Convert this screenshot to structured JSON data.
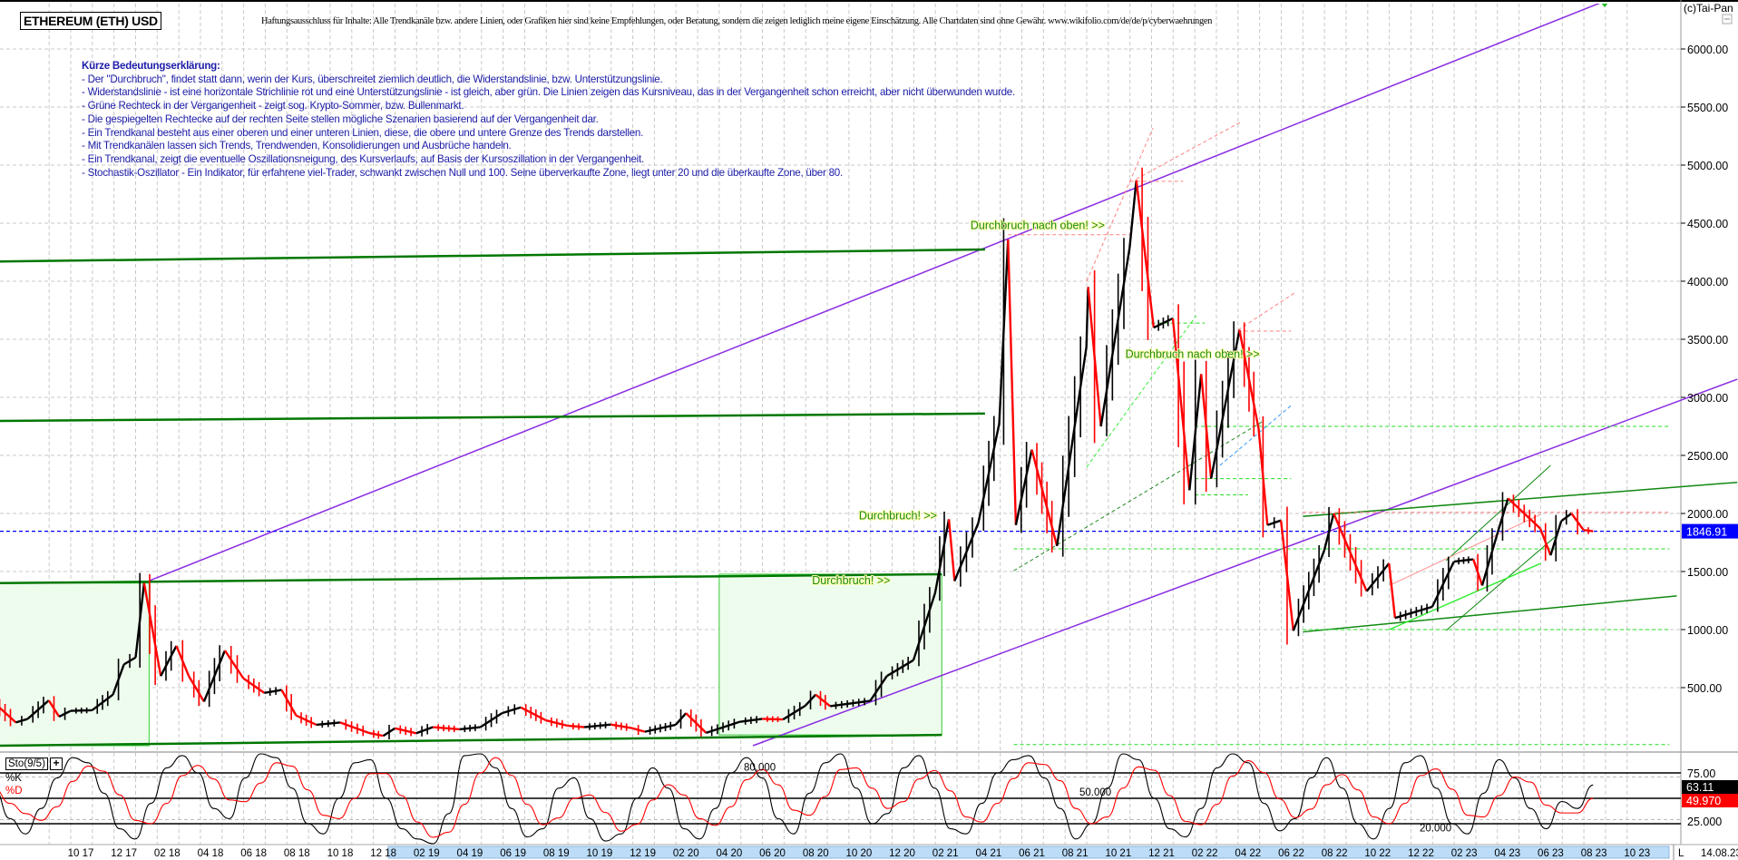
{
  "header": {
    "title": "ETHEREUM (ETH) USD",
    "disclaimer": "Haftungsausschluss für Inhalte: Alle Trendkanäle bzw. andere Linien, oder Grafiken hier sind keine Empfehlungen, oder Beratung, sondern die zeigen lediglich meine eigene Einschätzung. Alle Chartdaten sind ohne Gewähr.  www.wikifolio.com/de/de/p/cyberwaehrungen",
    "copyright": "(c)Tai-Pan"
  },
  "legend": {
    "heading": "Kürze Bedeutungserklärung:",
    "lines": [
      "- Der \"Durchbruch\", findet statt dann, wenn der Kurs, überschreitet ziemlich deutlich, die Widerstandslinie, bzw. Unterstützungslinie.",
      "- Widerstandslinie - ist eine horizontale Strichlinie rot und eine Unterstützungslinie - ist gleich, aber grün. Die Linien zeigen das Kursniveau, das in der Vergangenheit schon erreicht, aber nicht überwunden wurde.",
      "- Grüne Rechteck in der Vergangenheit - zeigt sog. Krypto-Sommer, bzw. Bullenmarkt.",
      "- Die gespiegelten Rechtecke auf der rechten Seite stellen mögliche Szenarien basierend auf der Vergangenheit dar.",
      "- Ein Trendkanal besteht aus einer oberen und einer unteren Linien, diese, die obere und untere Grenze des Trends darstellen.",
      "- Mit Trendkanälen lassen sich Trends, Trendwenden, Konsolidierungen und Ausbrüche handeln.",
      "- Ein Trendkanal, zeigt die eventuelle Oszillationsneigung, des Kursverlaufs, auf Basis der Kursoszillation in der Vergangenheit.",
      "- Stochastik-Oszillator - Ein Indikator, für erfahrene viel-Trader, schwankt zwischen Null und 100. Seine überverkaufte Zone, liegt unter 20 und die überkaufte Zone, über 80."
    ]
  },
  "chart_data": {
    "type": "line",
    "title": "ETHEREUM (ETH) USD",
    "ylim": [
      0,
      6400
    ],
    "y_scale": "linear",
    "y_ticks": [
      "500.00",
      "1000.00",
      "1500.00",
      "2000.00",
      "2500.00",
      "3000.00",
      "3500.00",
      "4000.00",
      "4500.00",
      "5000.00",
      "5500.00",
      "6000.00"
    ],
    "grid": true,
    "x_ticks": [
      "10 17",
      "12 17",
      "02 18",
      "04 18",
      "06 18",
      "08 18",
      "10 18",
      "12 18",
      "02 19",
      "04 19",
      "06 19",
      "08 19",
      "10 19",
      "12 19",
      "02 20",
      "04 20",
      "06 20",
      "08 20",
      "10 20",
      "12 20",
      "02 21",
      "04 21",
      "06 21",
      "08 21",
      "10 21",
      "12 21",
      "02 22",
      "04 22",
      "06 22",
      "08 22",
      "10 22",
      "12 22",
      "02 23",
      "04 23",
      "06 23",
      "08 23",
      "10 23"
    ],
    "x_end_label": "14.08.23",
    "x_scale_label": "L",
    "current_price": "1846.91",
    "colors": {
      "up": "#000000",
      "down": "#ff0000",
      "trend_purple": "#8a2be2",
      "support": "#007700",
      "support_dashed": "#22dd22",
      "resistance_dashed": "#ff8080",
      "current": "#0000ff"
    },
    "series": [
      {
        "values": [
          [
            "2017-06-15",
            370
          ],
          [
            "2017-07-15",
            200
          ],
          [
            "2017-08-01",
            230
          ],
          [
            "2017-08-31",
            390
          ],
          [
            "2017-09-15",
            250
          ],
          [
            "2017-10-01",
            300
          ],
          [
            "2017-10-31",
            305
          ],
          [
            "2017-11-30",
            440
          ],
          [
            "2017-12-15",
            700
          ],
          [
            "2018-01-01",
            760
          ],
          [
            "2018-01-13",
            1400
          ],
          [
            "2018-02-06",
            600
          ],
          [
            "2018-02-28",
            860
          ],
          [
            "2018-03-15",
            600
          ],
          [
            "2018-04-06",
            380
          ],
          [
            "2018-05-05",
            820
          ],
          [
            "2018-05-31",
            580
          ],
          [
            "2018-06-30",
            455
          ],
          [
            "2018-07-24",
            480
          ],
          [
            "2018-08-14",
            260
          ],
          [
            "2018-09-12",
            180
          ],
          [
            "2018-10-15",
            200
          ],
          [
            "2018-11-25",
            110
          ],
          [
            "2018-12-15",
            85
          ],
          [
            "2019-01-01",
            150
          ],
          [
            "2019-01-31",
            107
          ],
          [
            "2019-02-24",
            160
          ],
          [
            "2019-03-31",
            141
          ],
          [
            "2019-04-30",
            160
          ],
          [
            "2019-05-30",
            280
          ],
          [
            "2019-06-26",
            330
          ],
          [
            "2019-07-31",
            218
          ],
          [
            "2019-08-31",
            172
          ],
          [
            "2019-09-24",
            160
          ],
          [
            "2019-10-31",
            182
          ],
          [
            "2019-11-30",
            152
          ],
          [
            "2019-12-18",
            120
          ],
          [
            "2020-01-31",
            180
          ],
          [
            "2020-02-15",
            280
          ],
          [
            "2020-03-13",
            110
          ],
          [
            "2020-04-30",
            206
          ],
          [
            "2020-05-31",
            231
          ],
          [
            "2020-06-30",
            226
          ],
          [
            "2020-07-31",
            345
          ],
          [
            "2020-08-15",
            440
          ],
          [
            "2020-09-05",
            340
          ],
          [
            "2020-10-31",
            386
          ],
          [
            "2020-11-24",
            600
          ],
          [
            "2020-12-31",
            737
          ],
          [
            "2021-01-31",
            1314
          ],
          [
            "2021-02-20",
            1950
          ],
          [
            "2021-02-28",
            1418
          ],
          [
            "2021-03-31",
            1918
          ],
          [
            "2021-04-30",
            2773
          ],
          [
            "2021-05-12",
            4360
          ],
          [
            "2021-05-23",
            1900
          ],
          [
            "2021-06-15",
            2550
          ],
          [
            "2021-07-20",
            1720
          ],
          [
            "2021-08-31",
            3433
          ],
          [
            "2021-09-03",
            3950
          ],
          [
            "2021-09-21",
            2750
          ],
          [
            "2021-10-31",
            4288
          ],
          [
            "2021-11-10",
            4870
          ],
          [
            "2021-12-04",
            3600
          ],
          [
            "2021-12-31",
            3680
          ],
          [
            "2022-01-24",
            2200
          ],
          [
            "2022-02-10",
            3200
          ],
          [
            "2022-02-24",
            2300
          ],
          [
            "2022-04-03",
            3580
          ],
          [
            "2022-04-30",
            2730
          ],
          [
            "2022-05-12",
            1900
          ],
          [
            "2022-05-31",
            1940
          ],
          [
            "2022-06-18",
            990
          ],
          [
            "2022-07-31",
            1680
          ],
          [
            "2022-08-14",
            2000
          ],
          [
            "2022-09-30",
            1330
          ],
          [
            "2022-10-31",
            1570
          ],
          [
            "2022-11-09",
            1100
          ],
          [
            "2022-12-31",
            1196
          ],
          [
            "2023-01-31",
            1585
          ],
          [
            "2023-02-28",
            1605
          ],
          [
            "2023-03-10",
            1380
          ],
          [
            "2023-03-31",
            1820
          ],
          [
            "2023-04-16",
            2130
          ],
          [
            "2023-05-31",
            1870
          ],
          [
            "2023-06-15",
            1640
          ],
          [
            "2023-06-30",
            1934
          ],
          [
            "2023-07-14",
            2000
          ],
          [
            "2023-07-31",
            1857
          ],
          [
            "2023-08-14",
            1847
          ]
        ]
      }
    ],
    "zones": [
      {
        "from": "2017-06-22",
        "to": "2018-01-20",
        "low": 0,
        "high": 1400,
        "color": "#eefcee",
        "border": "#33cc33"
      },
      {
        "from": "2020-04-01",
        "to": "2021-02-10",
        "low": 93,
        "high": 1477,
        "color": "#eefcee",
        "border": "#33cc33"
      }
    ],
    "lines": [
      {
        "from": [
          "2018-01-20",
          1420
        ],
        "to": [
          "2023-09-03",
          6420
        ],
        "color": "#8a2be2",
        "dash": false,
        "width": 1.5
      },
      {
        "from": [
          "2020-05-18",
          0
        ],
        "to": [
          "2024-03-04",
          3156
        ],
        "color": "#8a2be2",
        "dash": false,
        "width": 1.5
      },
      {
        "from": [
          "2017-06-22",
          4170
        ],
        "to": [
          "2021-04-10",
          4273
        ],
        "color": "#007700",
        "dash": false,
        "width": 2.5
      },
      {
        "from": [
          "2017-06-22",
          2797
        ],
        "to": [
          "2021-04-10",
          2860
        ],
        "color": "#007700",
        "dash": false,
        "width": 2.5
      },
      {
        "from": [
          "2017-06-22",
          1400
        ],
        "to": [
          "2021-02-10",
          1477
        ],
        "color": "#007700",
        "dash": false,
        "width": 2.5
      },
      {
        "from": [
          "2017-06-22",
          0
        ],
        "to": [
          "2021-02-10",
          93
        ],
        "color": "#007700",
        "dash": false,
        "width": 2.5
      },
      {
        "from": [
          "2022-07-01",
          1975
        ],
        "to": [
          "2024-03-04",
          2268
        ],
        "color": "#118811",
        "dash": false,
        "width": 1.5
      },
      {
        "from": [
          "2022-07-01",
          980
        ],
        "to": [
          "2023-12-10",
          1290
        ],
        "color": "#118811",
        "dash": false,
        "width": 1.5
      },
      {
        "from": [
          "2023-01-20",
          1594
        ],
        "to": [
          "2023-06-15",
          2414
        ],
        "color": "#118811",
        "dash": false,
        "width": 1
      },
      {
        "from": [
          "2023-01-20",
          992
        ],
        "to": [
          "2023-06-24",
          1813
        ],
        "color": "#118811",
        "dash": false,
        "width": 1
      },
      {
        "from": [
          "2022-11-01",
          1000
        ],
        "to": [
          "2023-06-01",
          1570
        ],
        "color": "#33ee33",
        "dash": false,
        "width": 1.5
      },
      {
        "from": [
          "2022-11-01",
          1380
        ],
        "to": [
          "2023-06-01",
          1992
        ],
        "color": "#ff9090",
        "dash": false,
        "width": 1
      },
      {
        "from": [
          "2022-07-01",
          2010
        ],
        "to": [
          "2023-11-30",
          2010
        ],
        "color": "#ff8080",
        "dash": true,
        "width": 1
      },
      {
        "from": [
          "2021-05-20",
          1695
        ],
        "to": [
          "2023-11-30",
          1695
        ],
        "color": "#22dd22",
        "dash": true,
        "width": 1
      },
      {
        "from": [
          "2022-07-01",
          1000
        ],
        "to": [
          "2023-11-30",
          1000
        ],
        "color": "#22dd22",
        "dash": true,
        "width": 1
      },
      {
        "from": [
          "2021-05-20",
          10
        ],
        "to": [
          "2023-11-30",
          10
        ],
        "color": "#22dd22",
        "dash": true,
        "width": 1
      },
      {
        "from": [
          "2022-02-01",
          2750
        ],
        "to": [
          "2023-11-30",
          2750
        ],
        "color": "#22dd22",
        "dash": true,
        "width": 1
      },
      {
        "from": [
          "2021-12-01",
          3640
        ],
        "to": [
          "2022-02-15",
          3640
        ],
        "color": "#22dd22",
        "dash": true,
        "width": 1
      },
      {
        "from": [
          "2022-02-01",
          2300
        ],
        "to": [
          "2022-06-15",
          2300
        ],
        "color": "#22dd22",
        "dash": true,
        "width": 1
      },
      {
        "from": [
          "2022-02-01",
          2160
        ],
        "to": [
          "2022-04-15",
          2160
        ],
        "color": "#22dd22",
        "dash": true,
        "width": 1
      },
      {
        "from": [
          "2021-11-01",
          4860
        ],
        "to": [
          "2022-01-15",
          4860
        ],
        "color": "#ff8080",
        "dash": true,
        "width": 1
      },
      {
        "from": [
          "2021-05-12",
          4400
        ],
        "to": [
          "2021-11-01",
          4400
        ],
        "color": "#ff8080",
        "dash": true,
        "width": 1
      },
      {
        "from": [
          "2022-04-01",
          3570
        ],
        "to": [
          "2022-06-15",
          3570
        ],
        "color": "#ff8080",
        "dash": true,
        "width": 1
      },
      {
        "from": [
          "2021-09-01",
          4000
        ],
        "to": [
          "2021-12-03",
          5320
        ],
        "color": "#ff8080",
        "dash": true,
        "width": 1
      },
      {
        "from": [
          "2021-11-10",
          4880
        ],
        "to": [
          "2022-04-06",
          5375
        ],
        "color": "#ff8080",
        "dash": true,
        "width": 1
      },
      {
        "from": [
          "2022-04-01",
          3580
        ],
        "to": [
          "2022-06-20",
          3900
        ],
        "color": "#ff8080",
        "dash": true,
        "width": 1
      },
      {
        "from": [
          "2021-05-20",
          1506
        ],
        "to": [
          "2022-05-06",
          2795
        ],
        "color": "#228822",
        "dash": true,
        "width": 1
      },
      {
        "from": [
          "2021-09-01",
          2400
        ],
        "to": [
          "2022-02-03",
          3703
        ],
        "color": "#33ee33",
        "dash": true,
        "width": 1
      },
      {
        "from": [
          "2022-03-06",
          2414
        ],
        "to": [
          "2022-06-15",
          2930
        ],
        "color": "#3399ff",
        "dash": true,
        "width": 1
      }
    ],
    "annotations": [
      {
        "text": "Durchbruch nach oben! >>",
        "date": "2021-03-20",
        "price": 4450
      },
      {
        "text": "Durchbruch nach oben! >>",
        "date": "2021-10-25",
        "price": 3340
      },
      {
        "text": "Durchbruch! >>",
        "date": "2020-10-15",
        "price": 1950
      },
      {
        "text": "Durchbruch! >>",
        "date": "2020-08-10",
        "price": 1390
      }
    ]
  },
  "stochastic": {
    "name": "Sto(9/5)",
    "k_label": "%K",
    "d_label": "%D",
    "levels": [
      "80.000",
      "50.000",
      "20.000"
    ],
    "axis_labels": [
      "75.00",
      "25.000"
    ],
    "k_current": "63.11",
    "d_current": "49.970",
    "k_color": "#000000",
    "d_color": "#ff0000",
    "k_values": [
      60,
      30,
      15,
      40,
      70,
      90,
      85,
      55,
      20,
      10,
      45,
      80,
      92,
      75,
      40,
      30,
      70,
      95,
      90,
      60,
      25,
      15,
      50,
      85,
      88,
      50,
      20,
      10,
      5,
      35,
      92,
      98,
      80,
      40,
      12,
      20,
      60,
      70,
      30,
      8,
      15,
      50,
      80,
      60,
      20,
      10,
      40,
      75,
      90,
      70,
      30,
      15,
      55,
      85,
      95,
      60,
      25,
      35,
      80,
      92,
      60,
      20,
      15,
      45,
      75,
      88,
      92,
      70,
      40,
      10,
      25,
      60,
      95,
      88,
      50,
      20,
      12,
      40,
      80,
      96,
      85,
      45,
      18,
      30,
      70,
      90,
      60,
      25,
      10,
      40,
      85,
      92,
      60,
      25,
      15,
      55,
      88,
      70,
      40,
      20,
      46.8,
      40,
      63.11
    ]
  }
}
